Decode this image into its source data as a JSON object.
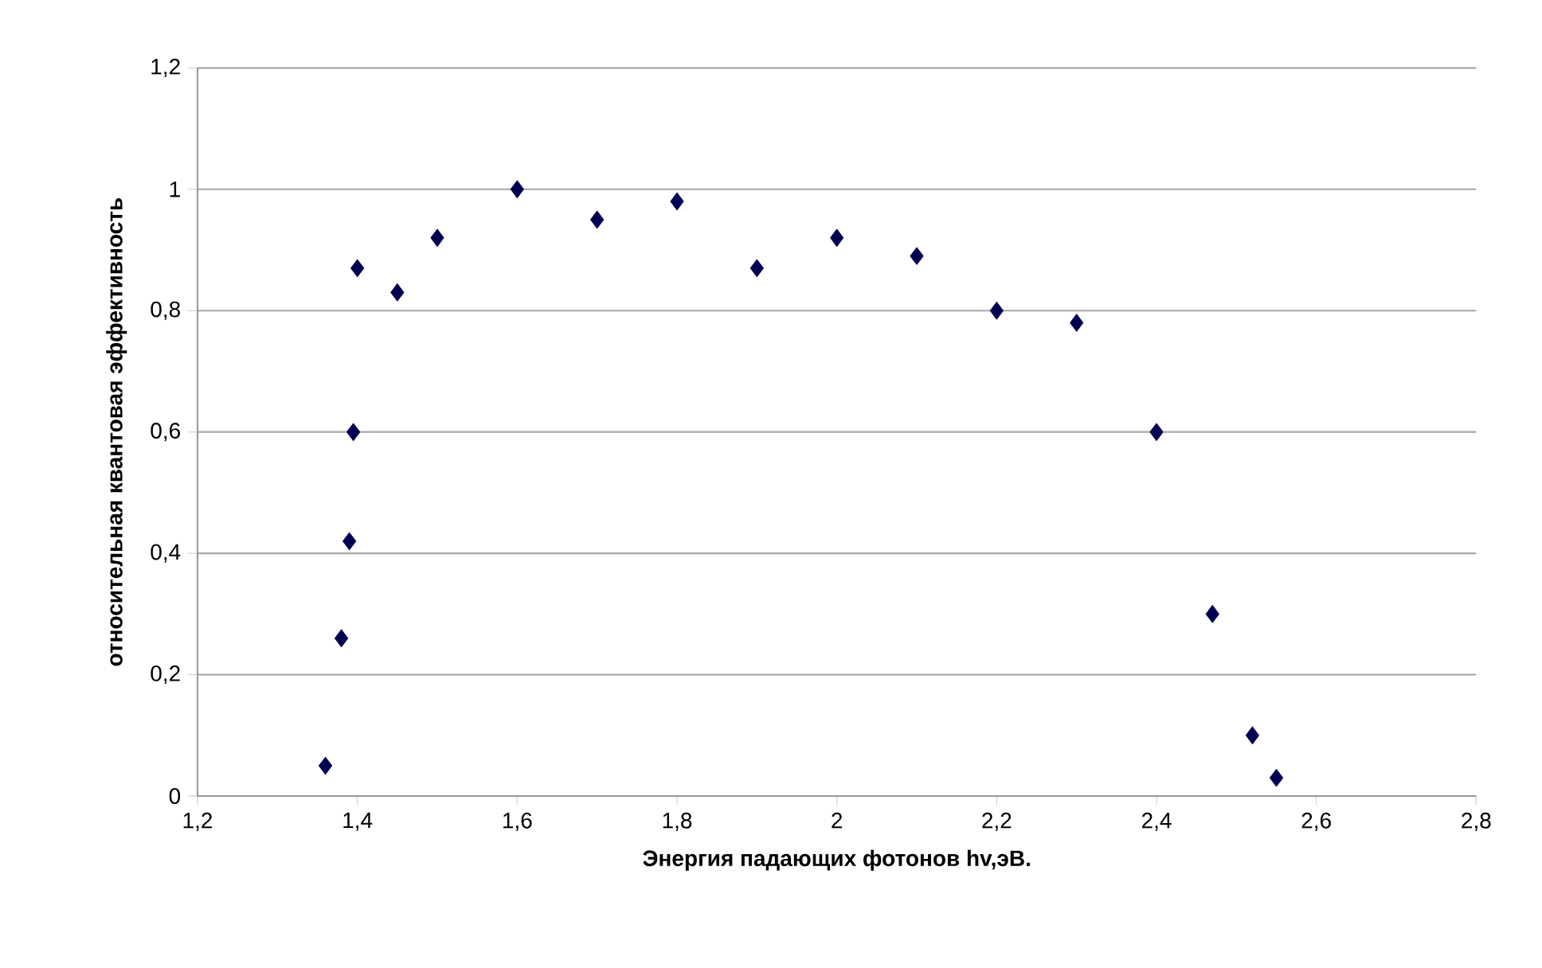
{
  "chart_data": {
    "type": "scatter",
    "xlabel": "Энергия падающих фотонов hv,эВ.",
    "ylabel": "относительная квантовая эффективность",
    "x": [
      1.36,
      1.38,
      1.39,
      1.395,
      1.4,
      1.45,
      1.5,
      1.6,
      1.7,
      1.8,
      1.9,
      2.0,
      2.1,
      2.2,
      2.3,
      2.4,
      2.47,
      2.52,
      2.55
    ],
    "values": [
      0.05,
      0.26,
      0.42,
      0.6,
      0.87,
      0.83,
      0.92,
      1.0,
      0.95,
      0.98,
      0.87,
      0.92,
      0.89,
      0.8,
      0.78,
      0.6,
      0.3,
      0.1,
      0.03
    ],
    "color": "#000050",
    "marker": "diamond",
    "grid": "y",
    "xlim": [
      1.2,
      2.8
    ],
    "ylim": [
      0,
      1.2
    ],
    "xticks": [
      {
        "value": 1.2,
        "label": "1,2"
      },
      {
        "value": 1.4,
        "label": "1,4"
      },
      {
        "value": 1.6,
        "label": "1,6"
      },
      {
        "value": 1.8,
        "label": "1,8"
      },
      2,
      {
        "value": 2.2,
        "label": "2,2"
      },
      {
        "value": 2.4,
        "label": "2,4"
      },
      {
        "value": 2.6,
        "label": "2,6"
      },
      {
        "value": 2.8,
        "label": "2,8"
      }
    ],
    "yticks": [
      0,
      {
        "value": 0.2,
        "label": "0,2"
      },
      {
        "value": 0.4,
        "label": "0,4"
      },
      {
        "value": 0.6,
        "label": "0,6"
      },
      {
        "value": 0.8,
        "label": "0,8"
      },
      1,
      {
        "value": 1.2,
        "label": "1,2"
      }
    ]
  }
}
